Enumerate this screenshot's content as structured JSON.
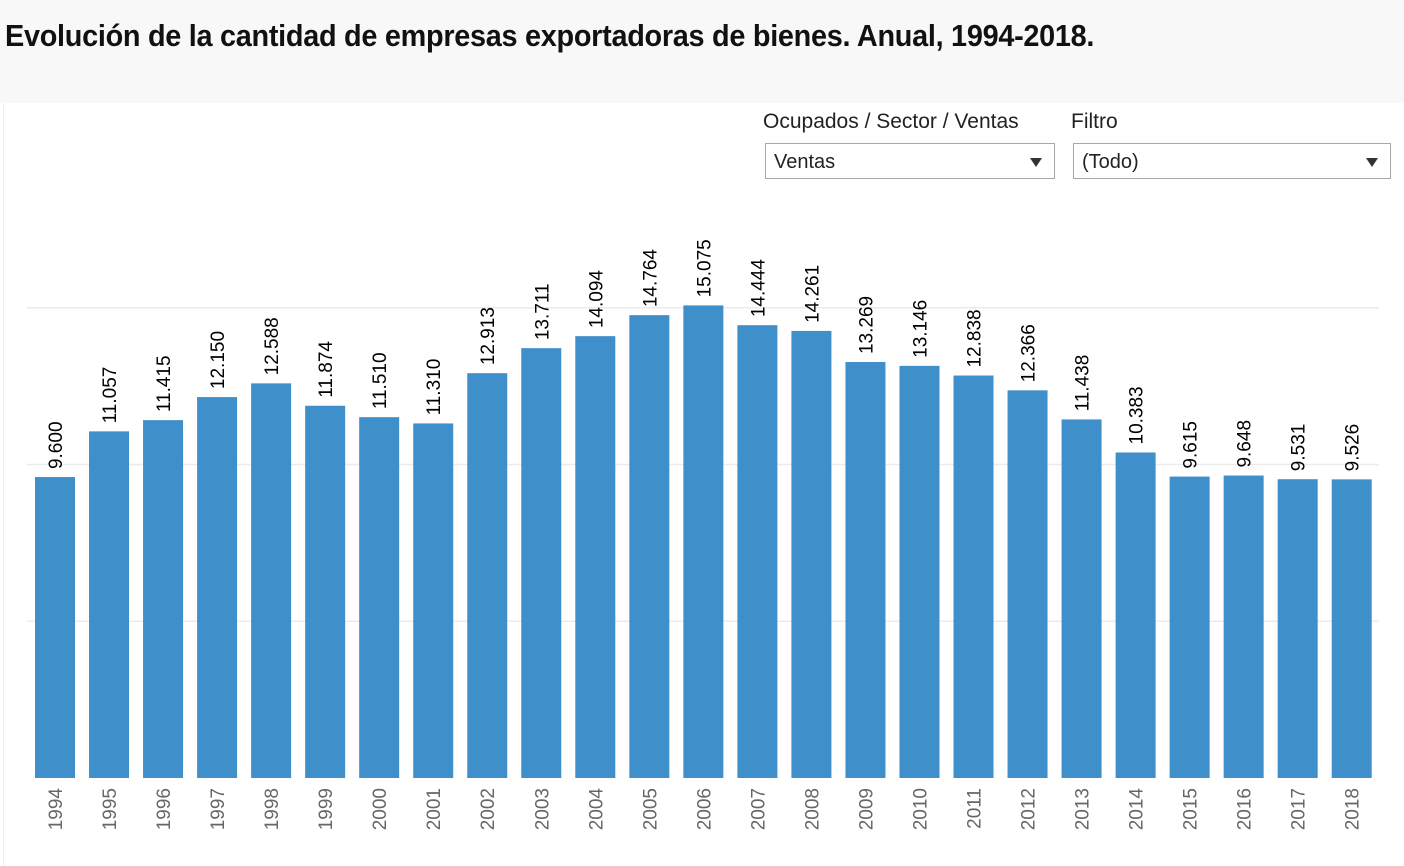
{
  "header": {
    "title": "Evolución de la cantidad de empresas exportadoras de bienes. Anual, 1994-2018."
  },
  "filters": [
    {
      "label": "Ocupados / Sector / Ventas",
      "value": "Ventas",
      "icon": "dropdown-arrow-icon"
    },
    {
      "label": "Filtro",
      "value": "(Todo)",
      "icon": "dropdown-arrow-icon"
    }
  ],
  "colors": {
    "bar": "#3f8fcb",
    "gridline": "#ebebeb",
    "header_bg": "#f8f8f8"
  },
  "chart_data": {
    "type": "bar",
    "title": "Evolución de la cantidad de empresas exportadoras de bienes. Anual, 1994-2018.",
    "xlabel": "",
    "ylabel": "",
    "categories": [
      "1994",
      "1995",
      "1996",
      "1997",
      "1998",
      "1999",
      "2000",
      "2001",
      "2002",
      "2003",
      "2004",
      "2005",
      "2006",
      "2007",
      "2008",
      "2009",
      "2010",
      "2011",
      "2012",
      "2013",
      "2014",
      "2015",
      "2016",
      "2017",
      "2018"
    ],
    "values": [
      9600,
      11057,
      11415,
      12150,
      12588,
      11874,
      11510,
      11310,
      12913,
      13711,
      14094,
      14764,
      15075,
      14444,
      14261,
      13269,
      13146,
      12838,
      12366,
      11438,
      10383,
      9615,
      9648,
      9531,
      9526
    ],
    "data_labels": [
      "9.600",
      "11.057",
      "11.415",
      "12.150",
      "12.588",
      "11.874",
      "11.510",
      "11.310",
      "12.913",
      "13.711",
      "14.094",
      "14.764",
      "15.075",
      "14.444",
      "14.261",
      "13.269",
      "13.146",
      "12.838",
      "12.366",
      "11.438",
      "10.383",
      "9.615",
      "9.648",
      "9.531",
      "9.526"
    ],
    "ylim": [
      0,
      15075
    ],
    "gridlines": [
      5000,
      10000,
      15000
    ],
    "grid": true,
    "y_axis_visible": false,
    "legend": "none"
  }
}
